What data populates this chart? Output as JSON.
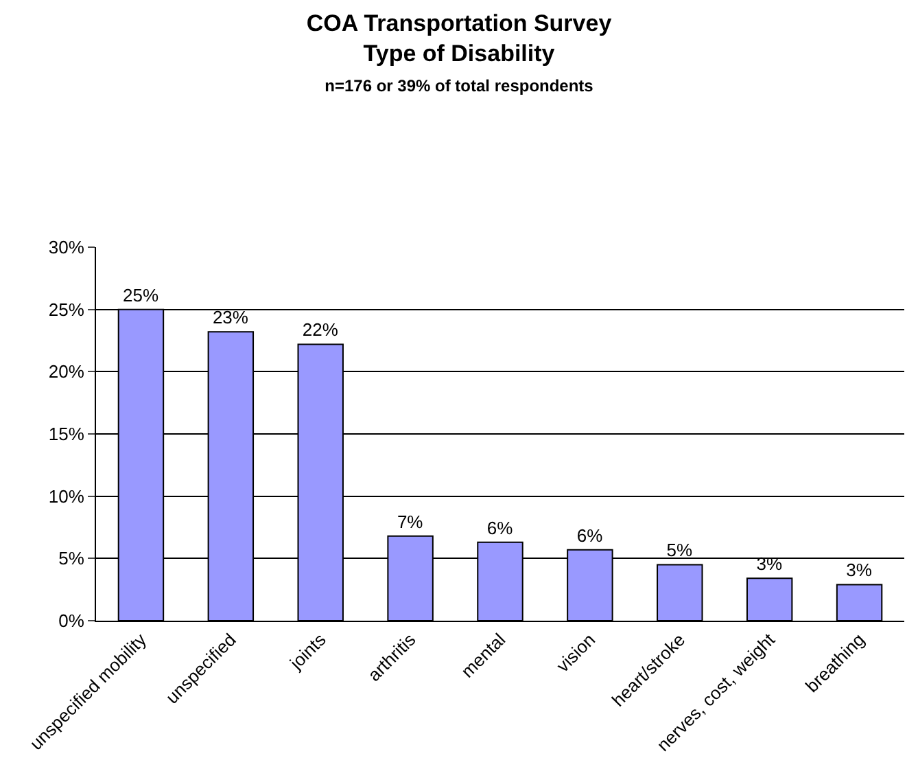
{
  "chart_data": {
    "type": "bar",
    "title": "COA Transportation Survey",
    "subtitle": "Type of Disability",
    "annotations": [
      "n=176 or 39% of total respondents"
    ],
    "categories": [
      "unspecified mobility",
      "unspecified",
      "joints",
      "arthritis",
      "mental",
      "vision",
      "heart/stroke",
      "nerves, cost, weight",
      "breathing"
    ],
    "values": [
      25.0,
      23.2,
      22.2,
      6.8,
      6.3,
      5.7,
      4.5,
      3.4,
      2.9
    ],
    "value_labels": [
      "25%",
      "23%",
      "22%",
      "7%",
      "6%",
      "6%",
      "5%",
      "3%",
      "3%"
    ],
    "color": "#9999ff",
    "ylim": [
      0,
      30
    ],
    "yticks": [
      {
        "value": 0,
        "label": "0%"
      },
      {
        "value": 5,
        "label": "5%"
      },
      {
        "value": 10,
        "label": "10%"
      },
      {
        "value": 15,
        "label": "15%"
      },
      {
        "value": 20,
        "label": "20%"
      },
      {
        "value": 25,
        "label": "25%"
      },
      {
        "value": 30,
        "label": "30%"
      }
    ],
    "grid": "y",
    "legend": false
  }
}
